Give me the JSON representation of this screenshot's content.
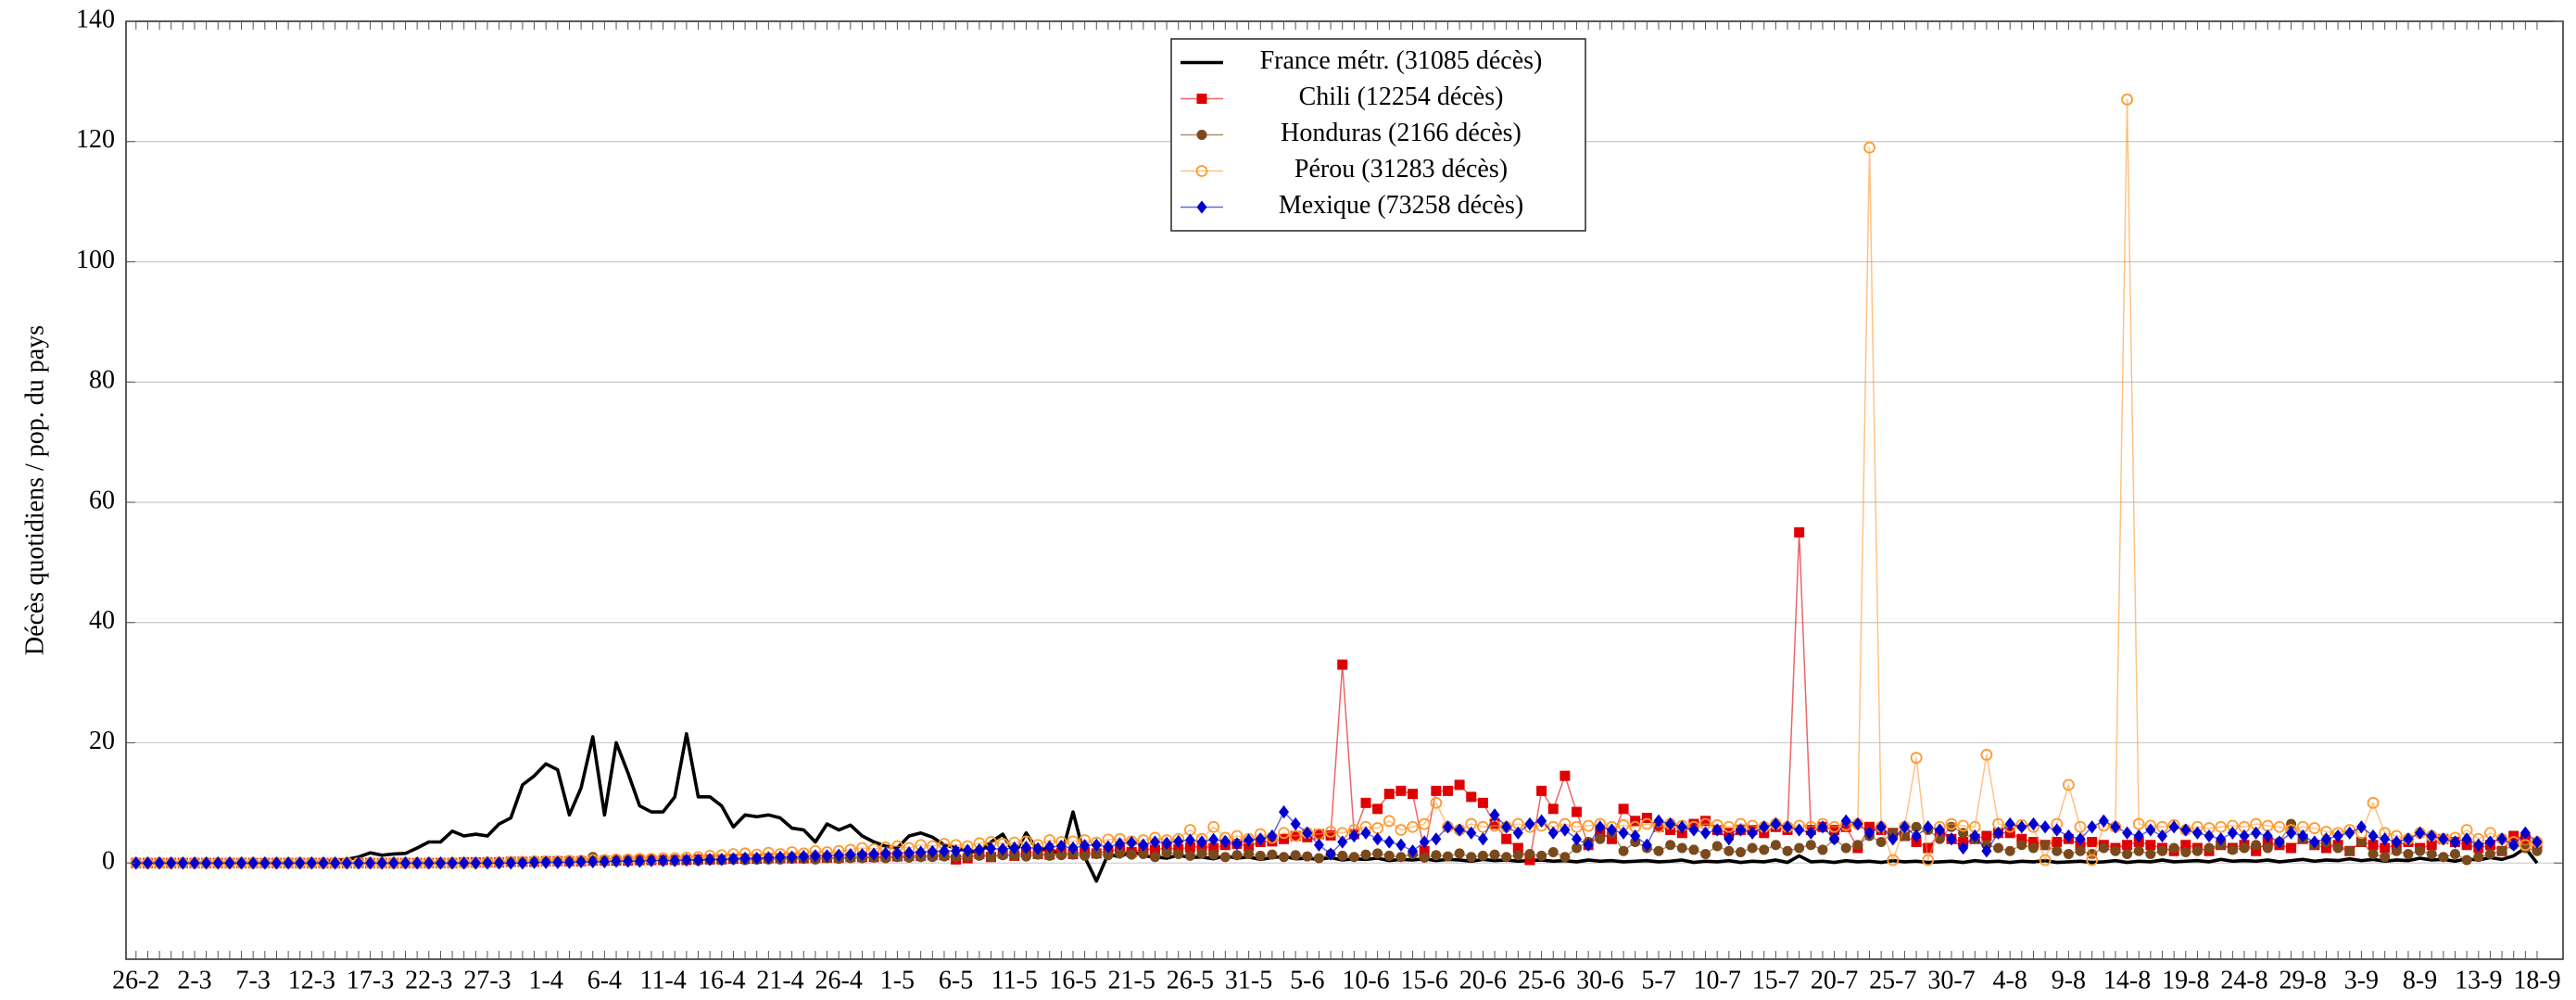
{
  "chart_data": {
    "type": "line",
    "ylabel": "Décès quotidiens / pop. du pays",
    "ylim": [
      -16,
      140
    ],
    "yticks": [
      0,
      20,
      40,
      60,
      80,
      100,
      120,
      140
    ],
    "grid": true,
    "legend": "upper center",
    "categories": [
      "26-2",
      null,
      null,
      null,
      null,
      "2-3",
      null,
      null,
      null,
      null,
      "7-3",
      null,
      null,
      null,
      null,
      "12-3",
      null,
      null,
      null,
      null,
      "17-3",
      null,
      null,
      null,
      null,
      "22-3",
      null,
      null,
      null,
      null,
      "27-3",
      null,
      null,
      null,
      null,
      "1-4",
      null,
      null,
      null,
      null,
      "6-4",
      null,
      null,
      null,
      null,
      "11-4",
      null,
      null,
      null,
      null,
      "16-4",
      null,
      null,
      null,
      null,
      "21-4",
      null,
      null,
      null,
      null,
      "26-4",
      null,
      null,
      null,
      null,
      "1-5",
      null,
      null,
      null,
      null,
      "6-5",
      null,
      null,
      null,
      null,
      "11-5",
      null,
      null,
      null,
      null,
      "16-5",
      null,
      null,
      null,
      null,
      "21-5",
      null,
      null,
      null,
      null,
      "26-5",
      null,
      null,
      null,
      null,
      "31-5",
      null,
      null,
      null,
      null,
      "5-6",
      null,
      null,
      null,
      null,
      "10-6",
      null,
      null,
      null,
      null,
      "15-6",
      null,
      null,
      null,
      null,
      "20-6",
      null,
      null,
      null,
      null,
      "25-6",
      null,
      null,
      null,
      null,
      "30-6",
      null,
      null,
      null,
      null,
      "5-7",
      null,
      null,
      null,
      null,
      "10-7",
      null,
      null,
      null,
      null,
      "15-7",
      null,
      null,
      null,
      null,
      "20-7",
      null,
      null,
      null,
      null,
      "25-7",
      null,
      null,
      null,
      null,
      "30-7",
      null,
      null,
      null,
      null,
      "4-8",
      null,
      null,
      null,
      null,
      "9-8",
      null,
      null,
      null,
      null,
      "14-8",
      null,
      null,
      null,
      null,
      "19-8",
      null,
      null,
      null,
      null,
      "24-8",
      null,
      null,
      null,
      null,
      "29-8",
      null,
      null,
      null,
      null,
      "3-9",
      null,
      null,
      null,
      null,
      "8-9",
      null,
      null,
      null,
      null,
      "13-9",
      null,
      null,
      null,
      null,
      "18-9"
    ],
    "series": [
      {
        "name": "France métr. (31085 décès)",
        "color": "#000000",
        "marker": "none",
        "values": [
          0,
          0,
          0,
          0,
          0,
          0,
          0,
          0,
          0,
          0,
          0,
          0,
          0,
          0,
          0,
          0,
          0.2,
          0.4,
          0.6,
          1.0,
          1.7,
          1.3,
          1.5,
          1.6,
          2.5,
          3.5,
          3.5,
          5.3,
          4.5,
          4.8,
          4.5,
          6.5,
          7.5,
          13,
          14.5,
          16.5,
          15.5,
          8,
          12.5,
          21,
          8,
          20,
          15,
          9.5,
          8.5,
          8.5,
          11,
          21.5,
          11,
          11,
          9.5,
          6,
          8,
          7.7,
          8,
          7.5,
          5.8,
          5.5,
          3.5,
          6.5,
          5.5,
          6.3,
          4.5,
          3.5,
          2.8,
          2.5,
          4.5,
          5,
          4.3,
          3,
          2.5,
          2,
          1.8,
          3.5,
          4.8,
          1.5,
          5,
          2,
          2.5,
          1.2,
          8.5,
          1,
          -3,
          1.5,
          1,
          2,
          1.2,
          1,
          0.8,
          1.3,
          0.9,
          1,
          0.7,
          1.2,
          0.8,
          1,
          0.6,
          0.9,
          1.1,
          0.7,
          0.8,
          0.6,
          0.9,
          0.5,
          0.7,
          0.6,
          0.8,
          0.4,
          0.6,
          0.5,
          0.7,
          0.4,
          0.6,
          0.5,
          0.3,
          0.6,
          0.4,
          0.5,
          0.3,
          0.4,
          0.5,
          0.3,
          0.4,
          0.2,
          0.5,
          0.3,
          0.4,
          0.2,
          0.3,
          0.4,
          0.2,
          0.3,
          0.5,
          0.1,
          0.3,
          0.2,
          0.4,
          0.1,
          0.3,
          0.2,
          0.5,
          0.1,
          1.2,
          0.2,
          0.3,
          0.1,
          0.4,
          0.2,
          0.3,
          0.1,
          0.4,
          0.2,
          0.3,
          0.1,
          0.2,
          0.3,
          0.1,
          0.4,
          0.2,
          0.3,
          0.1,
          0.3,
          0.2,
          0.4,
          0.1,
          0.2,
          0.3,
          0.1,
          0.2,
          0.4,
          0.1,
          0.3,
          0.2,
          0.5,
          0.2,
          0.3,
          0.4,
          0.2,
          0.6,
          0.3,
          0.4,
          0.3,
          0.5,
          0.2,
          0.4,
          0.6,
          0.3,
          0.5,
          0.4,
          0.7,
          0.4,
          0.6,
          0.3,
          0.5,
          0.4,
          0.8,
          0.5,
          0.6,
          0.3,
          0.7,
          0.5,
          0.9,
          0.6,
          1.2,
          2.5,
          0
        ]
      },
      {
        "name": "Chili (12254 décès)",
        "color": "#e00000",
        "marker": "square",
        "values": [
          0,
          0,
          0,
          0,
          0,
          0,
          0,
          0,
          0,
          0,
          0,
          0,
          0,
          0,
          0,
          0,
          0,
          0,
          0,
          0,
          0,
          0,
          0,
          0,
          0,
          0,
          0,
          0,
          0.1,
          0.1,
          0.1,
          0.1,
          0.2,
          0.2,
          0.2,
          0.3,
          0.3,
          0.3,
          0.3,
          0.4,
          0.4,
          0.4,
          0.4,
          0.5,
          0.5,
          0.5,
          0.5,
          0.5,
          0.6,
          0.6,
          0.6,
          0.7,
          0.7,
          0.7,
          0.8,
          0.8,
          0.8,
          0.8,
          0.9,
          0.9,
          0.9,
          1,
          1,
          1,
          1.1,
          1.1,
          1.2,
          1.2,
          1.3,
          1.3,
          0.6,
          0.8,
          1.5,
          1,
          1.6,
          1.2,
          1.8,
          1.5,
          1.4,
          1.7,
          1.5,
          1.8,
          1.6,
          2,
          2.2,
          1.8,
          2.4,
          2.2,
          2.5,
          2.3,
          2.6,
          2.8,
          2.5,
          3,
          3.2,
          2.8,
          3.5,
          3.6,
          4,
          4.5,
          4.3,
          4.8,
          4.6,
          33,
          4.8,
          10,
          9,
          11.5,
          12,
          11.5,
          2,
          12,
          12,
          13,
          11,
          10,
          6.5,
          4,
          2.5,
          0.5,
          12,
          9,
          14.5,
          8.5,
          3,
          5,
          4,
          9,
          7,
          7.5,
          6,
          5.5,
          5,
          6.5,
          7,
          5.5,
          5,
          5.5,
          5.5,
          5,
          6,
          5.5,
          55,
          5.5,
          6,
          5.5,
          6,
          2.5,
          6,
          5.5,
          5,
          4.5,
          3.5,
          2.5,
          5,
          4,
          3.5,
          4,
          4.5,
          5,
          5,
          4,
          3.5,
          3,
          3.5,
          4,
          3,
          3.5,
          3,
          2.5,
          3,
          3.5,
          3,
          2.5,
          2,
          3,
          2.5,
          2,
          3,
          2.5,
          3,
          2,
          3.5,
          3,
          2.5,
          4,
          3,
          2.5,
          3,
          2,
          3.5,
          3,
          2.5,
          3,
          3.5,
          2.5,
          3,
          4,
          3.5,
          3,
          2.5,
          3,
          2,
          4.5,
          4,
          3
        ]
      },
      {
        "name": "Honduras (2166 décès)",
        "color": "#7a4a1c",
        "marker": "circle",
        "values": [
          0,
          0,
          0,
          0,
          0,
          0,
          0,
          0,
          0,
          0,
          0,
          0,
          0,
          0,
          0,
          0,
          0,
          0,
          0,
          0,
          0,
          0,
          0,
          0,
          0,
          0,
          0,
          0,
          0,
          0,
          0.1,
          0.1,
          0.1,
          0.1,
          0.2,
          0.2,
          0.2,
          0.2,
          0.3,
          1,
          0.3,
          0.3,
          0.4,
          0.3,
          0.4,
          0.4,
          0.4,
          0.5,
          0.4,
          0.5,
          0.5,
          0.6,
          0.5,
          0.6,
          0.6,
          0.6,
          0.7,
          0.7,
          0.6,
          0.8,
          0.7,
          0.8,
          0.8,
          0.9,
          0.8,
          1,
          0.9,
          1,
          1,
          1.1,
          1,
          1.1,
          1.2,
          1,
          1.3,
          1.2,
          1.1,
          1.4,
          1.2,
          1.3,
          1.4,
          1.2,
          1.5,
          1.3,
          1.6,
          1.4,
          1.5,
          1,
          1.7,
          1.5,
          1.2,
          1.6,
          1.4,
          1,
          1.3,
          1.5,
          1.2,
          1.4,
          1,
          1.3,
          1.1,
          0.8,
          1.5,
          1.2,
          1,
          1.4,
          1.6,
          1.2,
          1,
          1.5,
          0.9,
          1.3,
          1.1,
          1.6,
          1,
          1.2,
          1.4,
          1,
          1.3,
          1.5,
          1.2,
          1.8,
          1,
          2.5,
          3.5,
          4,
          5,
          2,
          3.5,
          2.5,
          2,
          3,
          2.5,
          2.2,
          1.5,
          2.8,
          2,
          1.8,
          2.5,
          2.2,
          3,
          2,
          2.5,
          3,
          2.2,
          4,
          2.5,
          3,
          4.5,
          3.5,
          5,
          4.5,
          6,
          5.5,
          4,
          6,
          5,
          4,
          3,
          2.5,
          2,
          3,
          2.5,
          3,
          2,
          1.5,
          2,
          1.5,
          2.5,
          2,
          1.5,
          2,
          1.5,
          2,
          2.5,
          1.8,
          2,
          2.5,
          3,
          2.2,
          2.5,
          3,
          2.5,
          3.5,
          6.5,
          4,
          3,
          3.5,
          2.5,
          2,
          3.5,
          1.5,
          1,
          2,
          1.5,
          2,
          1.5,
          1,
          1.5,
          0.5,
          1,
          1.5,
          2,
          3,
          2.5,
          2
        ]
      },
      {
        "name": "Pérou (31283 décès)",
        "color": "#ff9a30",
        "marker": "circle-open",
        "values": [
          0,
          0,
          0,
          0,
          0,
          0,
          0,
          0,
          0,
          0,
          0,
          0,
          0,
          0,
          0,
          0,
          0,
          0,
          0,
          0,
          0,
          0,
          0,
          0,
          0,
          0,
          0,
          0,
          0,
          0,
          0.1,
          0.1,
          0.2,
          0.2,
          0.3,
          0.3,
          0.3,
          0.4,
          0.4,
          0.5,
          0.5,
          0.6,
          0.6,
          0.7,
          0.7,
          0.8,
          0.8,
          0.9,
          1,
          1.2,
          1.3,
          1.5,
          1.6,
          1.4,
          1.7,
          1.5,
          1.8,
          1.6,
          2,
          1.8,
          2,
          2.2,
          2.5,
          2.3,
          2.6,
          2.8,
          2.5,
          3,
          2.8,
          3.2,
          3,
          2.8,
          3.3,
          3.5,
          3.2,
          3.4,
          3.6,
          3,
          3.8,
          3.5,
          3.6,
          3.8,
          3.4,
          3.9,
          4,
          3.6,
          3.8,
          4.2,
          3.8,
          4,
          5.5,
          4,
          6,
          4.2,
          4.5,
          4,
          4.8,
          4.2,
          5,
          4.5,
          5,
          4.8,
          5.2,
          5,
          5.5,
          6,
          5.8,
          7,
          5.5,
          6,
          6.5,
          10,
          6,
          5.5,
          6.5,
          6,
          6.2,
          6,
          6.5,
          6,
          6.2,
          6,
          6.5,
          6,
          6.2,
          6.5,
          6,
          6.3,
          6,
          6.5,
          6,
          6.5,
          6.2,
          6,
          6.5,
          6.3,
          6,
          6.5,
          6.2,
          6,
          6.5,
          6,
          6.2,
          6,
          6.5,
          6,
          6.3,
          6.5,
          119,
          6,
          0.5,
          6,
          17.5,
          0.5,
          6,
          6.5,
          6.2,
          6,
          18,
          6.5,
          6,
          6.3,
          6,
          0.5,
          6.5,
          13,
          6,
          0.5,
          6.2,
          6,
          127,
          6.5,
          6.2,
          6,
          6.3,
          5.5,
          6,
          5.8,
          6,
          6.2,
          6,
          6.5,
          6.2,
          6,
          5.5,
          6,
          5.8,
          5.2,
          5,
          5.5,
          5,
          10,
          5,
          4.5,
          4,
          5,
          4.5,
          4,
          4.2,
          5.5,
          4,
          5,
          4,
          3.5,
          3,
          3.5
        ]
      },
      {
        "name": "Mexique (73258 décès)",
        "color": "#0000d0",
        "marker": "diamond",
        "values": [
          0,
          0,
          0,
          0,
          0,
          0,
          0,
          0,
          0,
          0,
          0,
          0,
          0,
          0,
          0,
          0,
          0,
          0,
          0,
          0,
          0,
          0,
          0,
          0,
          0,
          0,
          0,
          0,
          0,
          0,
          0,
          0,
          0,
          0,
          0.1,
          0.1,
          0.1,
          0.1,
          0.2,
          0.2,
          0.2,
          0.3,
          0.3,
          0.3,
          0.4,
          0.4,
          0.4,
          0.5,
          0.5,
          0.6,
          0.6,
          0.7,
          0.8,
          0.8,
          0.9,
          1,
          1,
          1.1,
          1.2,
          1.2,
          1.3,
          1.4,
          1.4,
          1.5,
          1.6,
          1.6,
          1.7,
          1.8,
          1.9,
          2,
          2,
          2.1,
          2.2,
          2.4,
          2.3,
          2.5,
          2.6,
          2.4,
          2.7,
          2.8,
          2.5,
          2.9,
          3,
          2.7,
          3.2,
          3.4,
          3,
          3.5,
          3.3,
          3.6,
          3.8,
          3.5,
          3.9,
          3.6,
          3.2,
          3.8,
          4,
          4.5,
          8.5,
          6.5,
          5,
          3,
          1.5,
          3.5,
          4.5,
          5,
          4,
          3.5,
          3,
          2,
          3.5,
          4,
          6,
          5.5,
          5,
          4,
          8,
          6,
          5,
          6.5,
          7,
          5,
          5.5,
          4,
          3,
          6,
          5.5,
          5,
          4.5,
          3,
          7,
          6.5,
          6,
          5.5,
          5,
          5.5,
          4,
          5.5,
          5,
          6,
          6.5,
          6,
          5.5,
          5,
          6,
          4,
          7,
          6.5,
          5,
          6,
          4,
          6,
          4.5,
          6,
          5.5,
          4,
          2.5,
          4.5,
          2,
          5,
          6.5,
          6,
          6.5,
          6,
          5.5,
          4.5,
          4,
          6,
          7,
          6,
          5,
          4.5,
          5.5,
          4.5,
          6,
          5.5,
          5,
          4.5,
          4,
          5,
          4.5,
          5,
          4.5,
          3.5,
          5,
          4.5,
          3.5,
          4,
          4.5,
          5,
          6,
          4.5,
          4,
          3.5,
          4,
          5,
          4.5,
          4,
          3.5,
          4,
          3,
          3.5,
          4,
          3,
          5,
          3.5
        ]
      }
    ]
  }
}
